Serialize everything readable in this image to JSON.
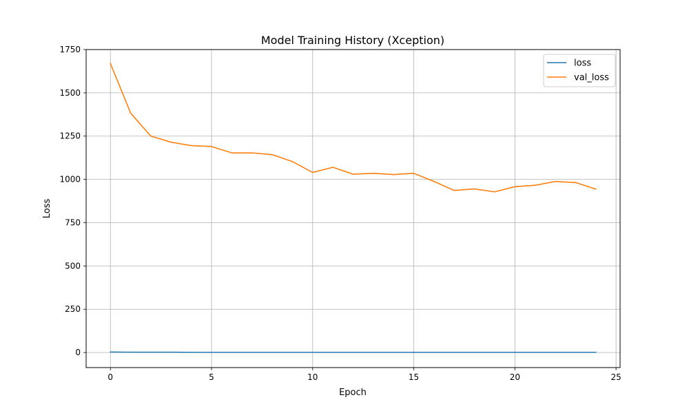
{
  "chart_data": {
    "type": "line",
    "title": "Model Training History (Xception)",
    "xlabel": "Epoch",
    "ylabel": "Loss",
    "xlim": [
      -1.2,
      25.2
    ],
    "ylim": [
      -87,
      1750
    ],
    "xticks": [
      0,
      5,
      10,
      15,
      20,
      25
    ],
    "yticks": [
      0,
      250,
      500,
      750,
      1000,
      1250,
      1500,
      1750
    ],
    "grid": true,
    "legend_position": "upper right",
    "x": [
      0,
      1,
      2,
      3,
      4,
      5,
      6,
      7,
      8,
      9,
      10,
      11,
      12,
      13,
      14,
      15,
      16,
      17,
      18,
      19,
      20,
      21,
      22,
      23,
      24
    ],
    "series": [
      {
        "name": "loss",
        "color": "#1f77b4",
        "values": [
          3,
          2,
          2,
          2,
          1,
          1,
          1,
          1,
          1,
          1,
          1,
          1,
          1,
          1,
          1,
          1,
          1,
          1,
          1,
          1,
          1,
          1,
          1,
          1,
          1
        ]
      },
      {
        "name": "val_loss",
        "color": "#ff7f0e",
        "values": [
          1670,
          1383,
          1250,
          1215,
          1195,
          1190,
          1153,
          1153,
          1143,
          1103,
          1040,
          1070,
          1030,
          1035,
          1028,
          1035,
          988,
          936,
          945,
          928,
          958,
          966,
          988,
          982,
          944
        ]
      }
    ]
  }
}
